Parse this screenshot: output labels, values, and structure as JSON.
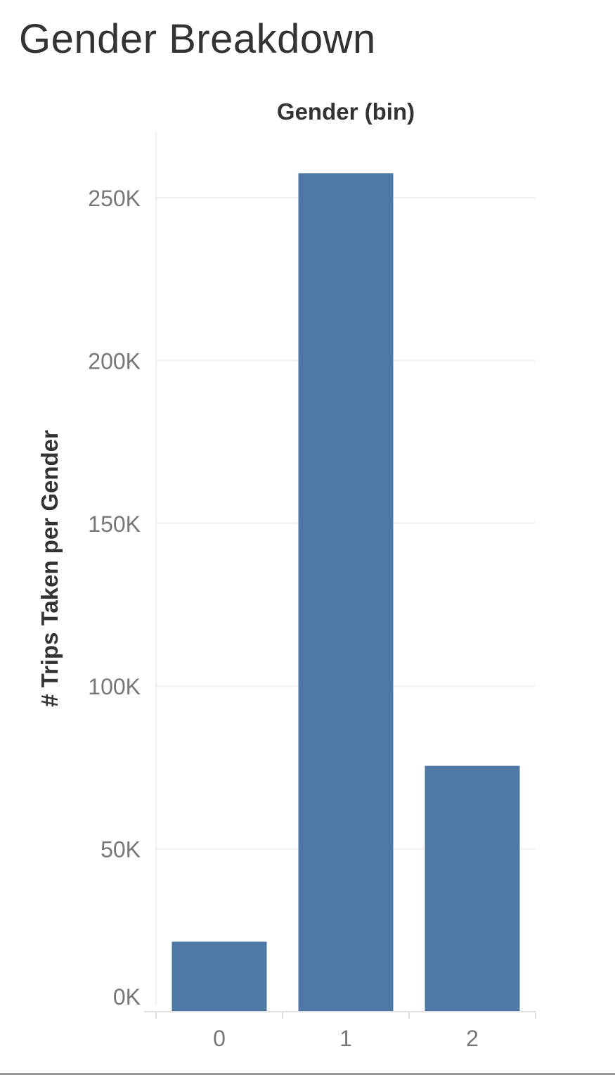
{
  "page": {
    "title": "Gender Breakdown"
  },
  "chart_data": {
    "type": "bar",
    "title": "Gender Breakdown",
    "column_header": "Gender (bin)",
    "xlabel": "",
    "ylabel": "# Trips Taken per Gender",
    "categories": [
      "0",
      "1",
      "2"
    ],
    "values": [
      21500,
      257500,
      75500
    ],
    "ylim": [
      0,
      270000
    ],
    "y_ticks": [
      0,
      50000,
      100000,
      150000,
      200000,
      250000
    ],
    "y_tick_labels": [
      "0K",
      "50K",
      "100K",
      "150K",
      "200K",
      "250K"
    ],
    "grid": true,
    "colors": {
      "bar": "#4e79a7",
      "grid": "#f0f0f0",
      "axis": "#e0e0e0",
      "tick_text": "#777777",
      "label_text": "#333333"
    }
  }
}
